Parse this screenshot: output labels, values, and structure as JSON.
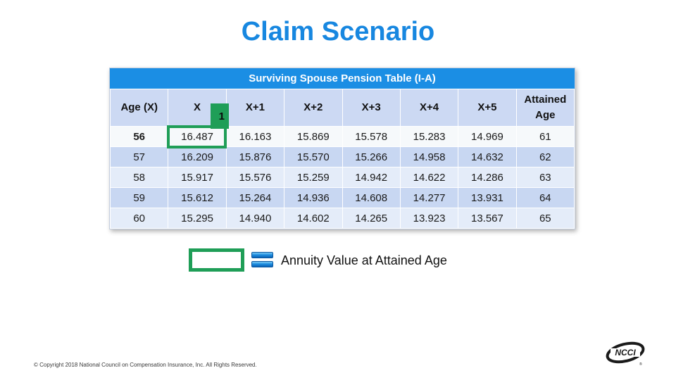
{
  "slide": {
    "title": "Claim Scenario",
    "footer": "© Copyright 2018 National Council on Compensation Insurance, Inc. All Rights Reserved."
  },
  "table": {
    "title": "Surviving Spouse Pension Table (I-A)",
    "columns": [
      "Age (X)",
      "X",
      "X+1",
      "X+2",
      "X+3",
      "X+4",
      "X+5",
      "Attained Age"
    ],
    "rows": [
      {
        "age": "56",
        "values": [
          "16.487",
          "16.163",
          "15.869",
          "15.578",
          "15.283",
          "14.969"
        ],
        "attained": "61",
        "highlight": true
      },
      {
        "age": "57",
        "values": [
          "16.209",
          "15.876",
          "15.570",
          "15.266",
          "14.958",
          "14.632"
        ],
        "attained": "62"
      },
      {
        "age": "58",
        "values": [
          "15.917",
          "15.576",
          "15.259",
          "14.942",
          "14.622",
          "14.286"
        ],
        "attained": "63"
      },
      {
        "age": "59",
        "values": [
          "15.612",
          "15.264",
          "14.936",
          "14.608",
          "14.277",
          "13.931"
        ],
        "attained": "64"
      },
      {
        "age": "60",
        "values": [
          "15.295",
          "14.940",
          "14.602",
          "14.265",
          "13.923",
          "13.567"
        ],
        "attained": "65"
      }
    ],
    "callout_number": "1"
  },
  "legend": {
    "label": "Annuity Value at Attained Age"
  },
  "logo": {
    "text": "NCCI",
    "registered": "®"
  },
  "colors": {
    "title_blue": "#1787e0",
    "header_bar_blue": "#1b8ee4",
    "header_row_bg": "#ccd9f3",
    "row_dark": "#c8d7f2",
    "row_light": "#e4ecf9",
    "row_highlight": "#f6f9fb",
    "highlight_green": "#1f9e57",
    "age_red": "#d9332a",
    "equals_blue_top": "#7cc9f5",
    "equals_blue_bottom": "#0b61b4"
  }
}
